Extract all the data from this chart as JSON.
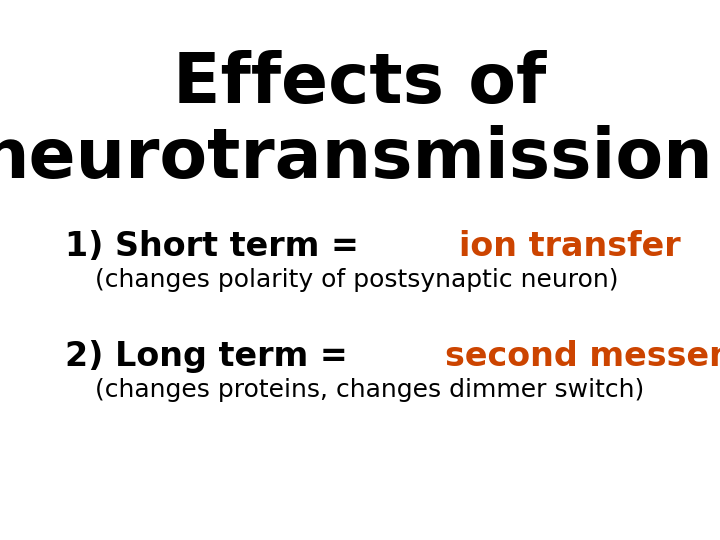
{
  "background_color": "#ffffff",
  "title_line1": "Effects of",
  "title_line2": "neurotransmission:",
  "title_fontsize": 50,
  "title_color": "#000000",
  "title_fontweight": "bold",
  "item1_prefix": "1) Short term ",
  "item1_equals": "= ",
  "item1_highlight": "ion transfer",
  "item1_sub": "(changes polarity of postsynaptic neuron)",
  "item2_prefix": "2) Long term ",
  "item2_equals": "= ",
  "item2_highlight": "second messenger system",
  "item2_sub": "(changes proteins, changes dimmer switch)",
  "item_fontsize": 24,
  "item_sub_fontsize": 18,
  "item_color": "#000000",
  "highlight_color": "#cc4400",
  "item_fontweight": "bold",
  "sub_fontweight": "normal",
  "fig_width": 7.2,
  "fig_height": 5.4,
  "dpi": 100
}
